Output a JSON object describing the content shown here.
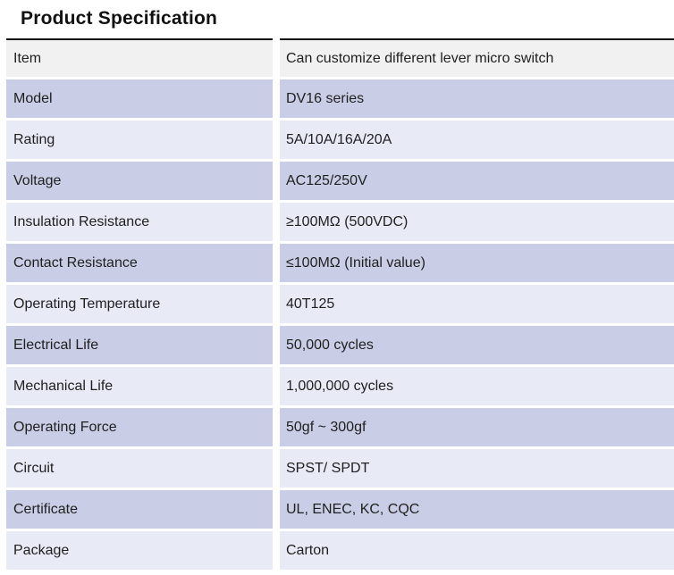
{
  "page": {
    "title": "Product Specification"
  },
  "colors": {
    "header_row_bg": "#f1f1f1",
    "row_medium_lavender": "#c9cee6",
    "row_light_lavender": "#e8eaf6",
    "top_rule": "#111111",
    "text": "#1f1f1f",
    "page_bg": "#ffffff"
  },
  "table": {
    "columns": [
      "label",
      "value"
    ],
    "rows": [
      {
        "label": "Item",
        "value": "Can customize different lever micro switch"
      },
      {
        "label": "Model",
        "value": "DV16 series"
      },
      {
        "label": "Rating",
        "value": "5A/10A/16A/20A"
      },
      {
        "label": "Voltage",
        "value": "AC125/250V"
      },
      {
        "label": "Insulation Resistance",
        "value": "≥100MΩ (500VDC)"
      },
      {
        "label": "Contact Resistance",
        "value": "≤100MΩ (Initial value)"
      },
      {
        "label": "Operating Temperature",
        "value": "40T125"
      },
      {
        "label": "Electrical Life",
        "value": "50,000 cycles"
      },
      {
        "label": "Mechanical Life",
        "value": "1,000,000 cycles"
      },
      {
        "label": "Operating Force",
        "value": "50gf ~ 300gf"
      },
      {
        "label": "Circuit",
        "value": "SPST/ SPDT"
      },
      {
        "label": "Certificate",
        "value": "UL, ENEC, KC, CQC"
      },
      {
        "label": "Package",
        "value": "Carton"
      }
    ]
  }
}
